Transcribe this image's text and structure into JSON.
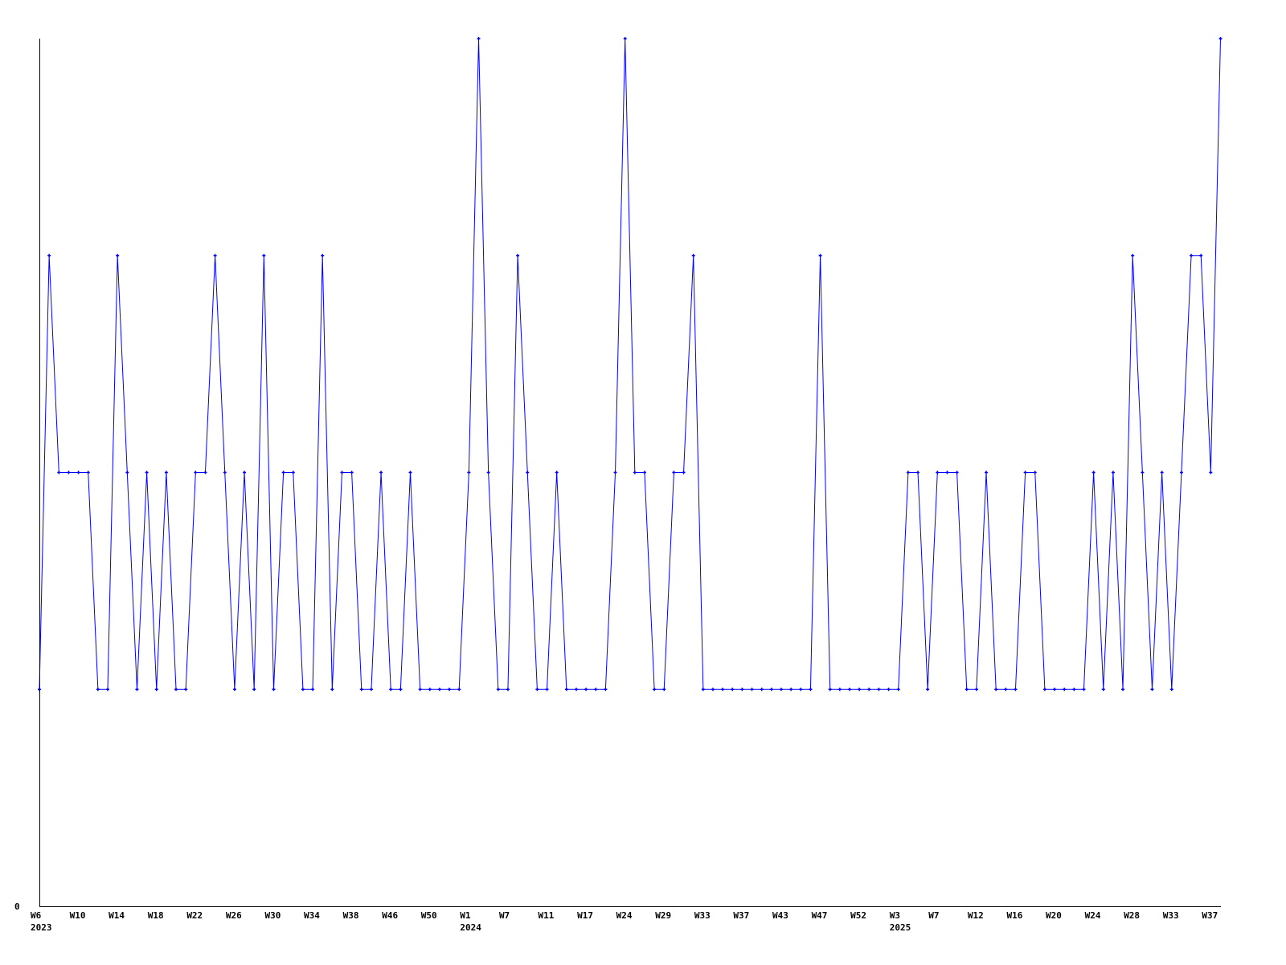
{
  "chart_data": {
    "type": "line",
    "title": "",
    "xlabel": "",
    "ylabel": "",
    "ylim": [
      0,
      4
    ],
    "y_tick_labels": [
      "0"
    ],
    "grid": false,
    "legend": "none",
    "series_color": "#0000ff",
    "axis_color": "#000000",
    "x_tick_labels": [
      "W6",
      "W10",
      "W14",
      "W18",
      "W22",
      "W26",
      "W30",
      "W34",
      "W38",
      "W46",
      "W50",
      "W1",
      "W7",
      "W11",
      "W17",
      "W24",
      "W29",
      "W33",
      "W37",
      "W43",
      "W47",
      "W52",
      "W3",
      "W7",
      "W12",
      "W16",
      "W20",
      "W24",
      "W28",
      "W33",
      "W37"
    ],
    "x_tick_every": 4,
    "year_labels": [
      {
        "label": "2023",
        "at_tick": 0
      },
      {
        "label": "2024",
        "at_tick": 11
      },
      {
        "label": "2025",
        "at_tick": 22
      }
    ],
    "series": [
      {
        "values": [
          1,
          3,
          2,
          2,
          2,
          2,
          1,
          1,
          3,
          2,
          1,
          2,
          1,
          2,
          1,
          1,
          2,
          2,
          3,
          2,
          1,
          2,
          1,
          3,
          1,
          2,
          2,
          1,
          1,
          3,
          1,
          2,
          2,
          1,
          1,
          2,
          1,
          1,
          2,
          1,
          1,
          1,
          1,
          1,
          2,
          4,
          2,
          1,
          1,
          3,
          2,
          1,
          1,
          2,
          1,
          1,
          1,
          1,
          1,
          2,
          4,
          2,
          2,
          1,
          1,
          2,
          2,
          3,
          1,
          1,
          1,
          1,
          1,
          1,
          1,
          1,
          1,
          1,
          1,
          1,
          3,
          1,
          1,
          1,
          1,
          1,
          1,
          1,
          1,
          2,
          2,
          1,
          2,
          2,
          2,
          1,
          1,
          2,
          1,
          1,
          1,
          2,
          2,
          1,
          1,
          1,
          1,
          1,
          2,
          1,
          2,
          1,
          3,
          2,
          1,
          2,
          1,
          2,
          3,
          3,
          2,
          4
        ]
      }
    ]
  }
}
